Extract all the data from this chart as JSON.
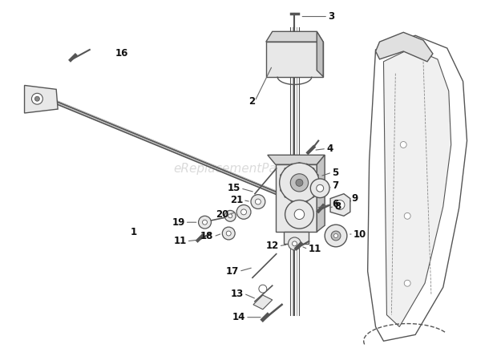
{
  "background_color": "#ffffff",
  "watermark_text": "eReplacementParts.com",
  "watermark_color": "#cccccc",
  "watermark_fontsize": 11,
  "line_color": "#555555",
  "label_color": "#111111",
  "label_fontsize": 8.5
}
